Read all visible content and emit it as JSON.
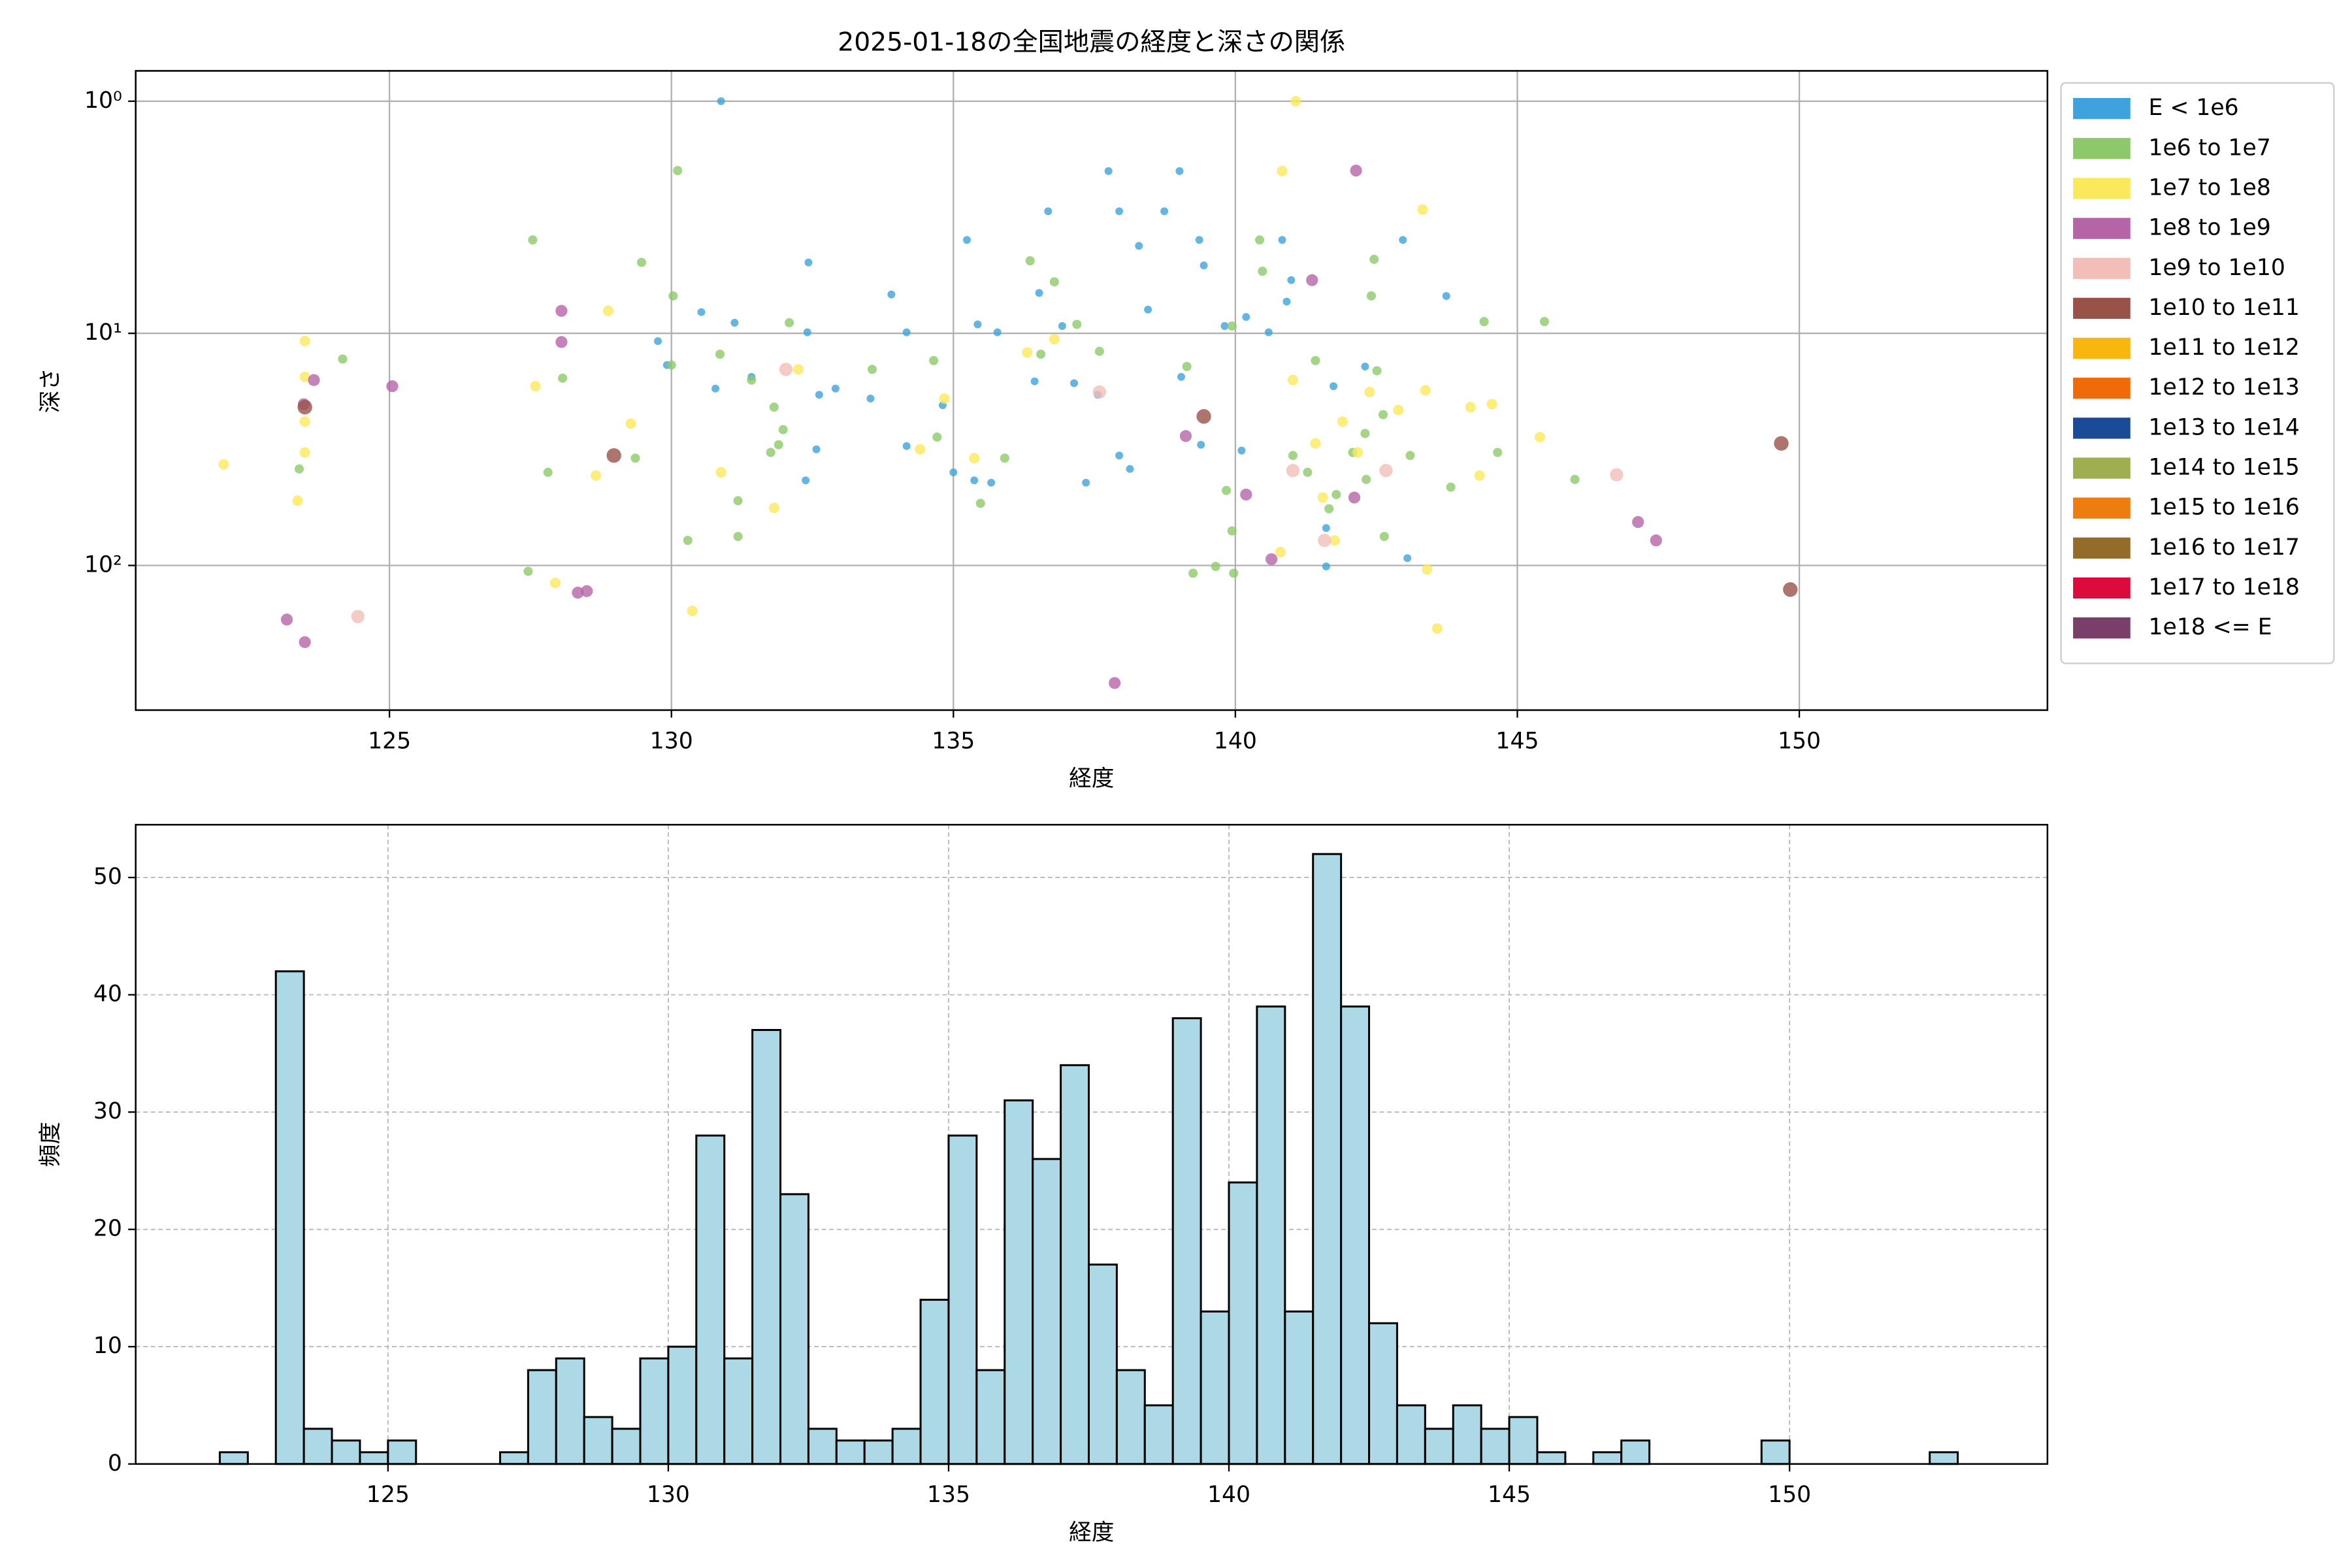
{
  "chart_data": [
    {
      "type": "scatter",
      "title": "2025-01-18の全国地震の経度と深さの関係",
      "xlabel": "経度",
      "ylabel": "深さ",
      "xlim": [
        120.5,
        154.4
      ],
      "xticks": [
        125,
        130,
        135,
        140,
        145,
        150
      ],
      "ylim": [
        0.74,
        420
      ],
      "y_inverted": true,
      "log_y": true,
      "yticks": [
        {
          "value": 1,
          "label": "10⁰"
        },
        {
          "value": 10,
          "label": "10¹"
        },
        {
          "value": 100,
          "label": "10²"
        }
      ],
      "grid": true,
      "legend": "outside upper right",
      "series": [
        {
          "name": "E < 1e6",
          "color": "#3ea2dc",
          "x": [
            130.88,
            137.75,
            139.01,
            136.68,
            137.94,
            138.74,
            135.24,
            139.36,
            140.83,
            142.97,
            132.43,
            143.74,
            134.17,
            130.53,
            129.76,
            129.92,
            131.12,
            132.41,
            132.62,
            132.38,
            132.57,
            132.91,
            133.53,
            134.17,
            135.0,
            135.37,
            135.67,
            134.81,
            135.78,
            136.44,
            136.93,
            137.35,
            137.94,
            138.13,
            138.45,
            139.04,
            139.39,
            139.44,
            140.11,
            140.19,
            140.59,
            140.91,
            140.99,
            141.61,
            141.61,
            141.74,
            142.3,
            143.05,
            130.78,
            131.42,
            133.9,
            137.14,
            137.56,
            136.52,
            135.43,
            139.81,
            138.29
          ],
          "values": [
            1.0,
            2.0,
            2.0,
            2.98,
            2.98,
            2.98,
            3.96,
            3.96,
            3.96,
            3.96,
            4.95,
            6.9,
            9.9,
            8.1,
            10.8,
            13.7,
            9.0,
            9.9,
            18.4,
            43,
            31.6,
            17.3,
            19.1,
            30.6,
            39.7,
            43,
            44,
            20.4,
            9.9,
            16.1,
            9.3,
            44,
            33.6,
            38.4,
            7.9,
            15.4,
            30.2,
            5.1,
            32,
            8.5,
            9.9,
            7.3,
            5.9,
            69,
            101,
            16.9,
            13.9,
            93,
            17.3,
            15.4,
            6.8,
            16.4,
            18.4,
            6.7,
            9.15,
            9.3,
            4.2
          ]
        },
        {
          "name": "1e6 to 1e7",
          "color": "#8dc96a",
          "x": [
            127.54,
            127.46,
            130.11,
            129.47,
            130.03,
            129.36,
            130.0,
            131.18,
            131.18,
            131.42,
            131.82,
            131.9,
            132.09,
            131.98,
            131.76,
            124.17,
            123.4,
            128.07,
            127.81,
            136.36,
            136.79,
            137.19,
            137.59,
            136.55,
            135.91,
            135.48,
            134.71,
            139.14,
            139.25,
            139.65,
            139.97,
            140.43,
            140.48,
            139.94,
            139.84,
            139.94,
            141.02,
            141.28,
            141.42,
            141.79,
            141.66,
            142.08,
            142.3,
            142.46,
            142.41,
            142.51,
            142.62,
            142.32,
            142.64,
            143.1,
            144.41,
            144.65,
            143.82,
            145.48,
            146.02,
            133.56,
            134.65,
            130.29,
            130.86
          ],
          "values": [
            3.96,
            106,
            1.99,
            4.95,
            6.9,
            34.5,
            13.7,
            52.6,
            75,
            15.9,
            20.8,
            30.2,
            9.0,
            26,
            32.6,
            12.9,
            38.4,
            15.6,
            39.7,
            4.87,
            6.0,
            9.15,
            11.96,
            12.3,
            34.5,
            54,
            28,
            13.9,
            108,
            101,
            108,
            3.96,
            5.4,
            9.3,
            47.5,
            71,
            33.6,
            39.7,
            13.1,
            49.5,
            57,
            32.6,
            27,
            4.8,
            6.9,
            14.5,
            22.4,
            42.6,
            75,
            33.6,
            8.9,
            32.6,
            46,
            8.9,
            42.6,
            14.3,
            13.1,
            78,
            12.3
          ]
        },
        {
          "name": "1e7 to 1e8",
          "color": "#fbe95c",
          "x": [
            122.06,
            123.5,
            123.5,
            123.5,
            123.5,
            123.37,
            127.59,
            127.94,
            128.88,
            129.28,
            128.66,
            130.37,
            130.88,
            131.82,
            134.41,
            134.84,
            135.37,
            136.31,
            136.79,
            141.07,
            140.83,
            141.02,
            141.42,
            140.8,
            141.55,
            141.9,
            142.38,
            142.89,
            143.32,
            143.37,
            143.4,
            143.58,
            144.17,
            144.55,
            144.33,
            145.4,
            132.25,
            141.76,
            142.17
          ],
          "values": [
            36.7,
            10.8,
            15.4,
            24,
            32.6,
            52.6,
            16.9,
            119,
            8.0,
            24.5,
            41,
            157,
            39.7,
            56.5,
            31.6,
            19.1,
            34.5,
            12.1,
            10.6,
            1.0,
            2.0,
            15.9,
            29.8,
            87.6,
            51,
            24,
            17.9,
            21.4,
            2.93,
            17.6,
            104,
            187,
            20.8,
            20.2,
            41,
            28,
            14.3,
            78,
            32.6
          ]
        },
        {
          "name": "1e8 to 1e9",
          "color": "#b565a7",
          "x": [
            123.18,
            123.5,
            123.48,
            123.66,
            125.05,
            128.05,
            128.05,
            128.34,
            128.5,
            142.14,
            141.36,
            140.19,
            140.64,
            142.11,
            147.14,
            147.46,
            139.12,
            137.86
          ],
          "values": [
            171,
            214,
            20.2,
            15.9,
            16.9,
            8.0,
            10.9,
            131,
            129,
            1.99,
            5.9,
            49.5,
            94,
            51,
            65,
            78,
            27.7,
            321
          ]
        },
        {
          "name": "1e9 to 1e10",
          "color": "#f3beb8",
          "x": [
            124.44,
            146.76,
            137.59,
            141.02,
            141.58,
            142.67,
            132.03
          ],
          "values": [
            166,
            40.7,
            17.9,
            39,
            78,
            39,
            14.3
          ]
        },
        {
          "name": "1e10 to 1e11",
          "color": "#985248",
          "x": [
            128.98,
            139.44,
            149.68,
            149.84,
            123.5
          ],
          "values": [
            33.6,
            22.8,
            29.8,
            127,
            20.8
          ]
        },
        {
          "name": "1e11 to 1e12",
          "color": "#f9b60f",
          "x": [],
          "values": []
        },
        {
          "name": "1e12 to 1e13",
          "color": "#f06a0a",
          "x": [],
          "values": []
        },
        {
          "name": "1e13 to 1e14",
          "color": "#1b4a97",
          "x": [],
          "values": []
        },
        {
          "name": "1e14 to 1e15",
          "color": "#9fae4f",
          "x": [],
          "values": []
        },
        {
          "name": "1e15 to 1e16",
          "color": "#ee7d10",
          "x": [],
          "values": []
        },
        {
          "name": "1e16 to 1e17",
          "color": "#956b2a",
          "x": [],
          "values": []
        },
        {
          "name": "1e17 to 1e18",
          "color": "#db0c3b",
          "x": [],
          "values": []
        },
        {
          "name": "1e18 <= E",
          "color": "#7a3e6b",
          "x": [],
          "values": []
        }
      ]
    },
    {
      "type": "histogram",
      "xlabel": "経度",
      "ylabel": "頻度",
      "color": "#add8e6",
      "edgecolor": "#000000",
      "xlim": [
        120.5,
        154.6
      ],
      "xticks": [
        125,
        130,
        135,
        140,
        145,
        150
      ],
      "ylim": [
        0,
        54.5
      ],
      "yticks": [
        0,
        10,
        20,
        30,
        40,
        50
      ],
      "grid": true,
      "bins": [
        122,
        122.5,
        123,
        123.5,
        124,
        124.5,
        125,
        125.5,
        126,
        126.5,
        127,
        127.5,
        128,
        128.5,
        129,
        129.5,
        130,
        130.5,
        131,
        131.5,
        132,
        132.5,
        133,
        133.5,
        134,
        134.5,
        135,
        135.5,
        136,
        136.5,
        137,
        137.5,
        138,
        138.5,
        139,
        139.5,
        140,
        140.5,
        141,
        141.5,
        142,
        142.5,
        143,
        143.5,
        144,
        144.5,
        145,
        145.5,
        146,
        146.5,
        147,
        147.5,
        148,
        148.5,
        149,
        149.5,
        150,
        150.5,
        151,
        151.5,
        152,
        152.5,
        153
      ],
      "values": [
        1,
        0,
        42,
        3,
        2,
        1,
        2,
        0,
        0,
        0,
        1,
        8,
        9,
        4,
        3,
        9,
        10,
        28,
        9,
        37,
        23,
        3,
        2,
        2,
        3,
        14,
        28,
        8,
        31,
        26,
        34,
        17,
        8,
        5,
        38,
        13,
        24,
        39,
        13,
        52,
        39,
        12,
        5,
        3,
        5,
        3,
        4,
        1,
        0,
        1,
        2,
        0,
        0,
        0,
        0,
        2,
        0,
        0,
        0,
        0,
        0,
        1
      ]
    }
  ]
}
